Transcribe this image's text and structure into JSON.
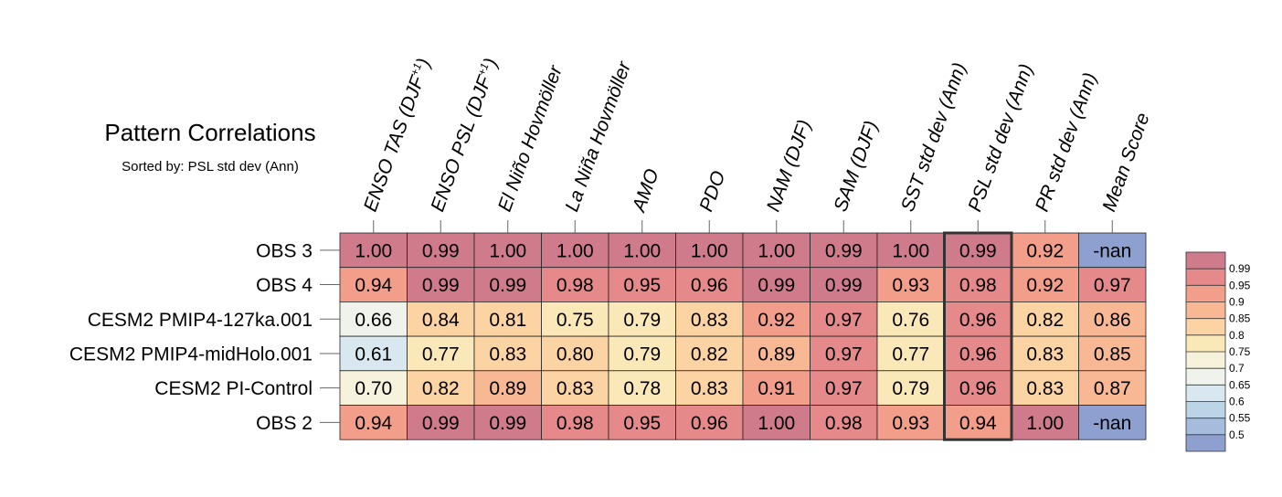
{
  "title": "Pattern Correlations",
  "subtitle": "Sorted by: PSL std dev (Ann)",
  "chart_data": {
    "type": "heatmap",
    "columns": [
      {
        "label": "ENSO TAS (DJF",
        "sup": "+1",
        "tail": ")"
      },
      {
        "label": "ENSO PSL (DJF",
        "sup": "+1",
        "tail": ")"
      },
      {
        "label": "El Niño Hovmöller",
        "sup": "",
        "tail": ""
      },
      {
        "label": "La Niña Hovmöller",
        "sup": "",
        "tail": ""
      },
      {
        "label": "AMO",
        "sup": "",
        "tail": ""
      },
      {
        "label": "PDO",
        "sup": "",
        "tail": ""
      },
      {
        "label": "NAM (DJF)",
        "sup": "",
        "tail": ""
      },
      {
        "label": "SAM (DJF)",
        "sup": "",
        "tail": ""
      },
      {
        "label": "SST std dev (Ann)",
        "sup": "",
        "tail": ""
      },
      {
        "label": "PSL std dev (Ann)",
        "sup": "",
        "tail": ""
      },
      {
        "label": "PR std dev (Ann)",
        "sup": "",
        "tail": ""
      },
      {
        "label": "Mean Score",
        "sup": "",
        "tail": ""
      }
    ],
    "rows": [
      "OBS 3",
      "OBS 4",
      "CESM2 PMIP4-127ka.001",
      "CESM2 PMIP4-midHolo.001",
      "CESM2 PI-Control",
      "OBS 2"
    ],
    "values": [
      [
        "1.00",
        "0.99",
        "1.00",
        "1.00",
        "1.00",
        "1.00",
        "1.00",
        "0.99",
        "1.00",
        "0.99",
        "0.92",
        "-nan"
      ],
      [
        "0.94",
        "0.99",
        "0.99",
        "0.98",
        "0.95",
        "0.96",
        "0.99",
        "0.99",
        "0.93",
        "0.98",
        "0.92",
        "0.97"
      ],
      [
        "0.66",
        "0.84",
        "0.81",
        "0.75",
        "0.79",
        "0.83",
        "0.92",
        "0.97",
        "0.76",
        "0.96",
        "0.82",
        "0.86"
      ],
      [
        "0.61",
        "0.77",
        "0.83",
        "0.80",
        "0.79",
        "0.82",
        "0.89",
        "0.97",
        "0.77",
        "0.96",
        "0.83",
        "0.85"
      ],
      [
        "0.70",
        "0.82",
        "0.89",
        "0.83",
        "0.78",
        "0.83",
        "0.91",
        "0.97",
        "0.79",
        "0.96",
        "0.83",
        "0.87"
      ],
      [
        "0.94",
        "0.99",
        "0.99",
        "0.98",
        "0.95",
        "0.96",
        "1.00",
        "0.98",
        "0.93",
        "0.94",
        "1.00",
        "-nan"
      ]
    ],
    "highlight_column": "PSL std dev (Ann)",
    "colorbar": {
      "labels": [
        "0.99",
        "0.95",
        "0.9",
        "0.85",
        "0.8",
        "0.75",
        "0.7",
        "0.65",
        "0.6",
        "0.55",
        "0.5"
      ],
      "colors": [
        "#cf7b8c",
        "#e5898b",
        "#f29e8b",
        "#f8b894",
        "#fcd3a2",
        "#fbe8b8",
        "#f7f2dc",
        "#f0f2ec",
        "#d9e8f0",
        "#bcd5e6",
        "#a6bcdc",
        "#8ea0d0"
      ],
      "nan_color": "#8ea0d0"
    }
  }
}
